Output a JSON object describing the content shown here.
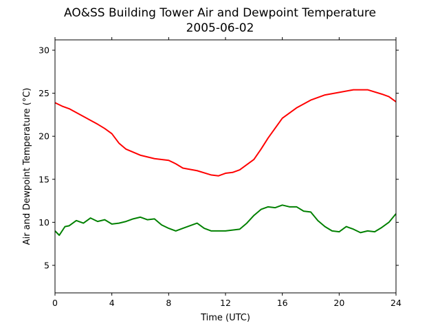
{
  "chart_data": {
    "type": "line",
    "title": "AO&SS Building Tower Air and Dewpoint Temperature",
    "subtitle": "2005-06-02",
    "xlabel": "Time (UTC)",
    "ylabel": "Air and Dewpoint Temperature (°C)",
    "xlim": [
      0,
      24
    ],
    "ylim": [
      1.8,
      31.2
    ],
    "xticks": [
      0,
      4,
      8,
      12,
      16,
      20,
      24
    ],
    "yticks": [
      5,
      10,
      15,
      20,
      25,
      30
    ],
    "grid": false,
    "legend": "none",
    "series": [
      {
        "color": "#ff0000",
        "x": [
          0,
          0.5,
          1,
          2,
          3,
          3.5,
          4,
          4.5,
          5,
          6,
          7,
          8,
          8.5,
          9,
          10,
          11,
          11.5,
          12,
          12.5,
          13,
          14,
          14.5,
          15,
          16,
          17,
          18,
          19,
          20,
          21,
          22,
          23,
          23.5,
          24
        ],
        "y": [
          23.9,
          23.5,
          23.2,
          22.3,
          21.4,
          20.9,
          20.3,
          19.2,
          18.5,
          17.8,
          17.4,
          17.2,
          16.8,
          16.3,
          16.0,
          15.5,
          15.4,
          15.7,
          15.8,
          16.1,
          17.3,
          18.5,
          19.8,
          22.1,
          23.3,
          24.2,
          24.8,
          25.1,
          25.4,
          25.4,
          24.9,
          24.6,
          24.0
        ]
      },
      {
        "color": "#008000",
        "x": [
          0,
          0.3,
          0.7,
          1,
          1.5,
          2,
          2.5,
          3,
          3.5,
          4,
          4.5,
          5,
          5.5,
          6,
          6.5,
          7,
          7.5,
          8,
          8.5,
          9,
          9.5,
          10,
          10.5,
          11,
          11.5,
          12,
          12.5,
          13,
          13.5,
          14,
          14.5,
          15,
          15.5,
          16,
          16.5,
          17,
          17.5,
          18,
          18.5,
          19,
          19.5,
          20,
          20.5,
          21,
          21.5,
          22,
          22.5,
          23,
          23.5,
          24
        ],
        "y": [
          9.0,
          8.5,
          9.5,
          9.6,
          10.2,
          9.9,
          10.5,
          10.1,
          10.3,
          9.8,
          9.9,
          10.1,
          10.4,
          10.6,
          10.3,
          10.4,
          9.7,
          9.3,
          9.0,
          9.3,
          9.6,
          9.9,
          9.3,
          9.0,
          9.0,
          9.0,
          9.1,
          9.2,
          9.9,
          10.8,
          11.5,
          11.8,
          11.7,
          12.0,
          11.8,
          11.8,
          11.3,
          11.2,
          10.2,
          9.5,
          9.0,
          8.9,
          9.5,
          9.2,
          8.8,
          9.0,
          8.9,
          9.4,
          10.0,
          11.0
        ]
      }
    ]
  }
}
